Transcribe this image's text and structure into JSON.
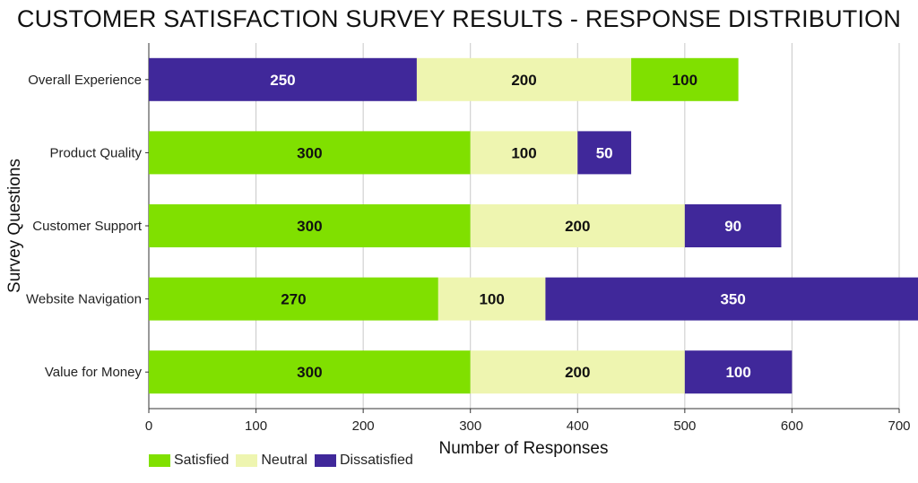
{
  "chart_data": {
    "type": "bar",
    "orientation": "horizontal",
    "stacked": true,
    "title": "CUSTOMER SATISFACTION SURVEY RESULTS - RESPONSE DISTRIBUTION",
    "xlabel": "Number of Responses",
    "ylabel": "Survey Questions",
    "xlim": [
      0,
      700
    ],
    "xticks": [
      0,
      100,
      200,
      300,
      400,
      500,
      600,
      700
    ],
    "grid": true,
    "legend_position": "bottom-left",
    "categories": [
      "Overall Experience",
      "Product Quality",
      "Customer Support",
      "Website Navigation",
      "Value for Money"
    ],
    "rows": [
      {
        "category": "Overall Experience",
        "segments": [
          {
            "series": "Dissatisfied",
            "value": 250
          },
          {
            "series": "Neutral",
            "value": 200
          },
          {
            "series": "Satisfied",
            "value": 100
          }
        ]
      },
      {
        "category": "Product Quality",
        "segments": [
          {
            "series": "Satisfied",
            "value": 300
          },
          {
            "series": "Neutral",
            "value": 100
          },
          {
            "series": "Dissatisfied",
            "value": 50
          }
        ]
      },
      {
        "category": "Customer Support",
        "segments": [
          {
            "series": "Satisfied",
            "value": 300
          },
          {
            "series": "Neutral",
            "value": 200
          },
          {
            "series": "Dissatisfied",
            "value": 90
          }
        ]
      },
      {
        "category": "Website Navigation",
        "segments": [
          {
            "series": "Satisfied",
            "value": 270
          },
          {
            "series": "Neutral",
            "value": 100
          },
          {
            "series": "Dissatisfied",
            "value": 350
          }
        ]
      },
      {
        "category": "Value for Money",
        "segments": [
          {
            "series": "Satisfied",
            "value": 300
          },
          {
            "series": "Neutral",
            "value": 200
          },
          {
            "series": "Dissatisfied",
            "value": 100
          }
        ]
      }
    ],
    "series": [
      {
        "name": "Satisfied",
        "color": "#80e000"
      },
      {
        "name": "Neutral",
        "color": "#eef5b0"
      },
      {
        "name": "Dissatisfied",
        "color": "#40289a"
      }
    ]
  }
}
